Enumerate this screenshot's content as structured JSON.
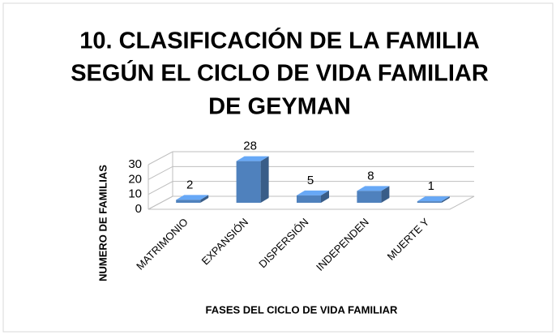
{
  "chart_data": {
    "type": "bar3d",
    "title": [
      "10. CLASIFICACIÓN DE LA FAMILIA",
      "SEGÚN EL  CICLO DE VIDA FAMILIAR",
      "DE  GEYMAN"
    ],
    "x_label": "FASES DEL CICLO DE VIDA FAMILIAR",
    "y_label": "NUMERO DE FAMILIAS",
    "categories": [
      "MATRIMONIO",
      "EXPANSIÓN",
      "DISPERSIÓN",
      "INDEPENDEN",
      "MUERTE Y"
    ],
    "values": [
      2,
      28,
      5,
      8,
      1
    ],
    "color": "#4f81bd",
    "ylim": [
      0,
      30
    ],
    "yticks": [
      0,
      10,
      20,
      30
    ],
    "grid": true
  }
}
